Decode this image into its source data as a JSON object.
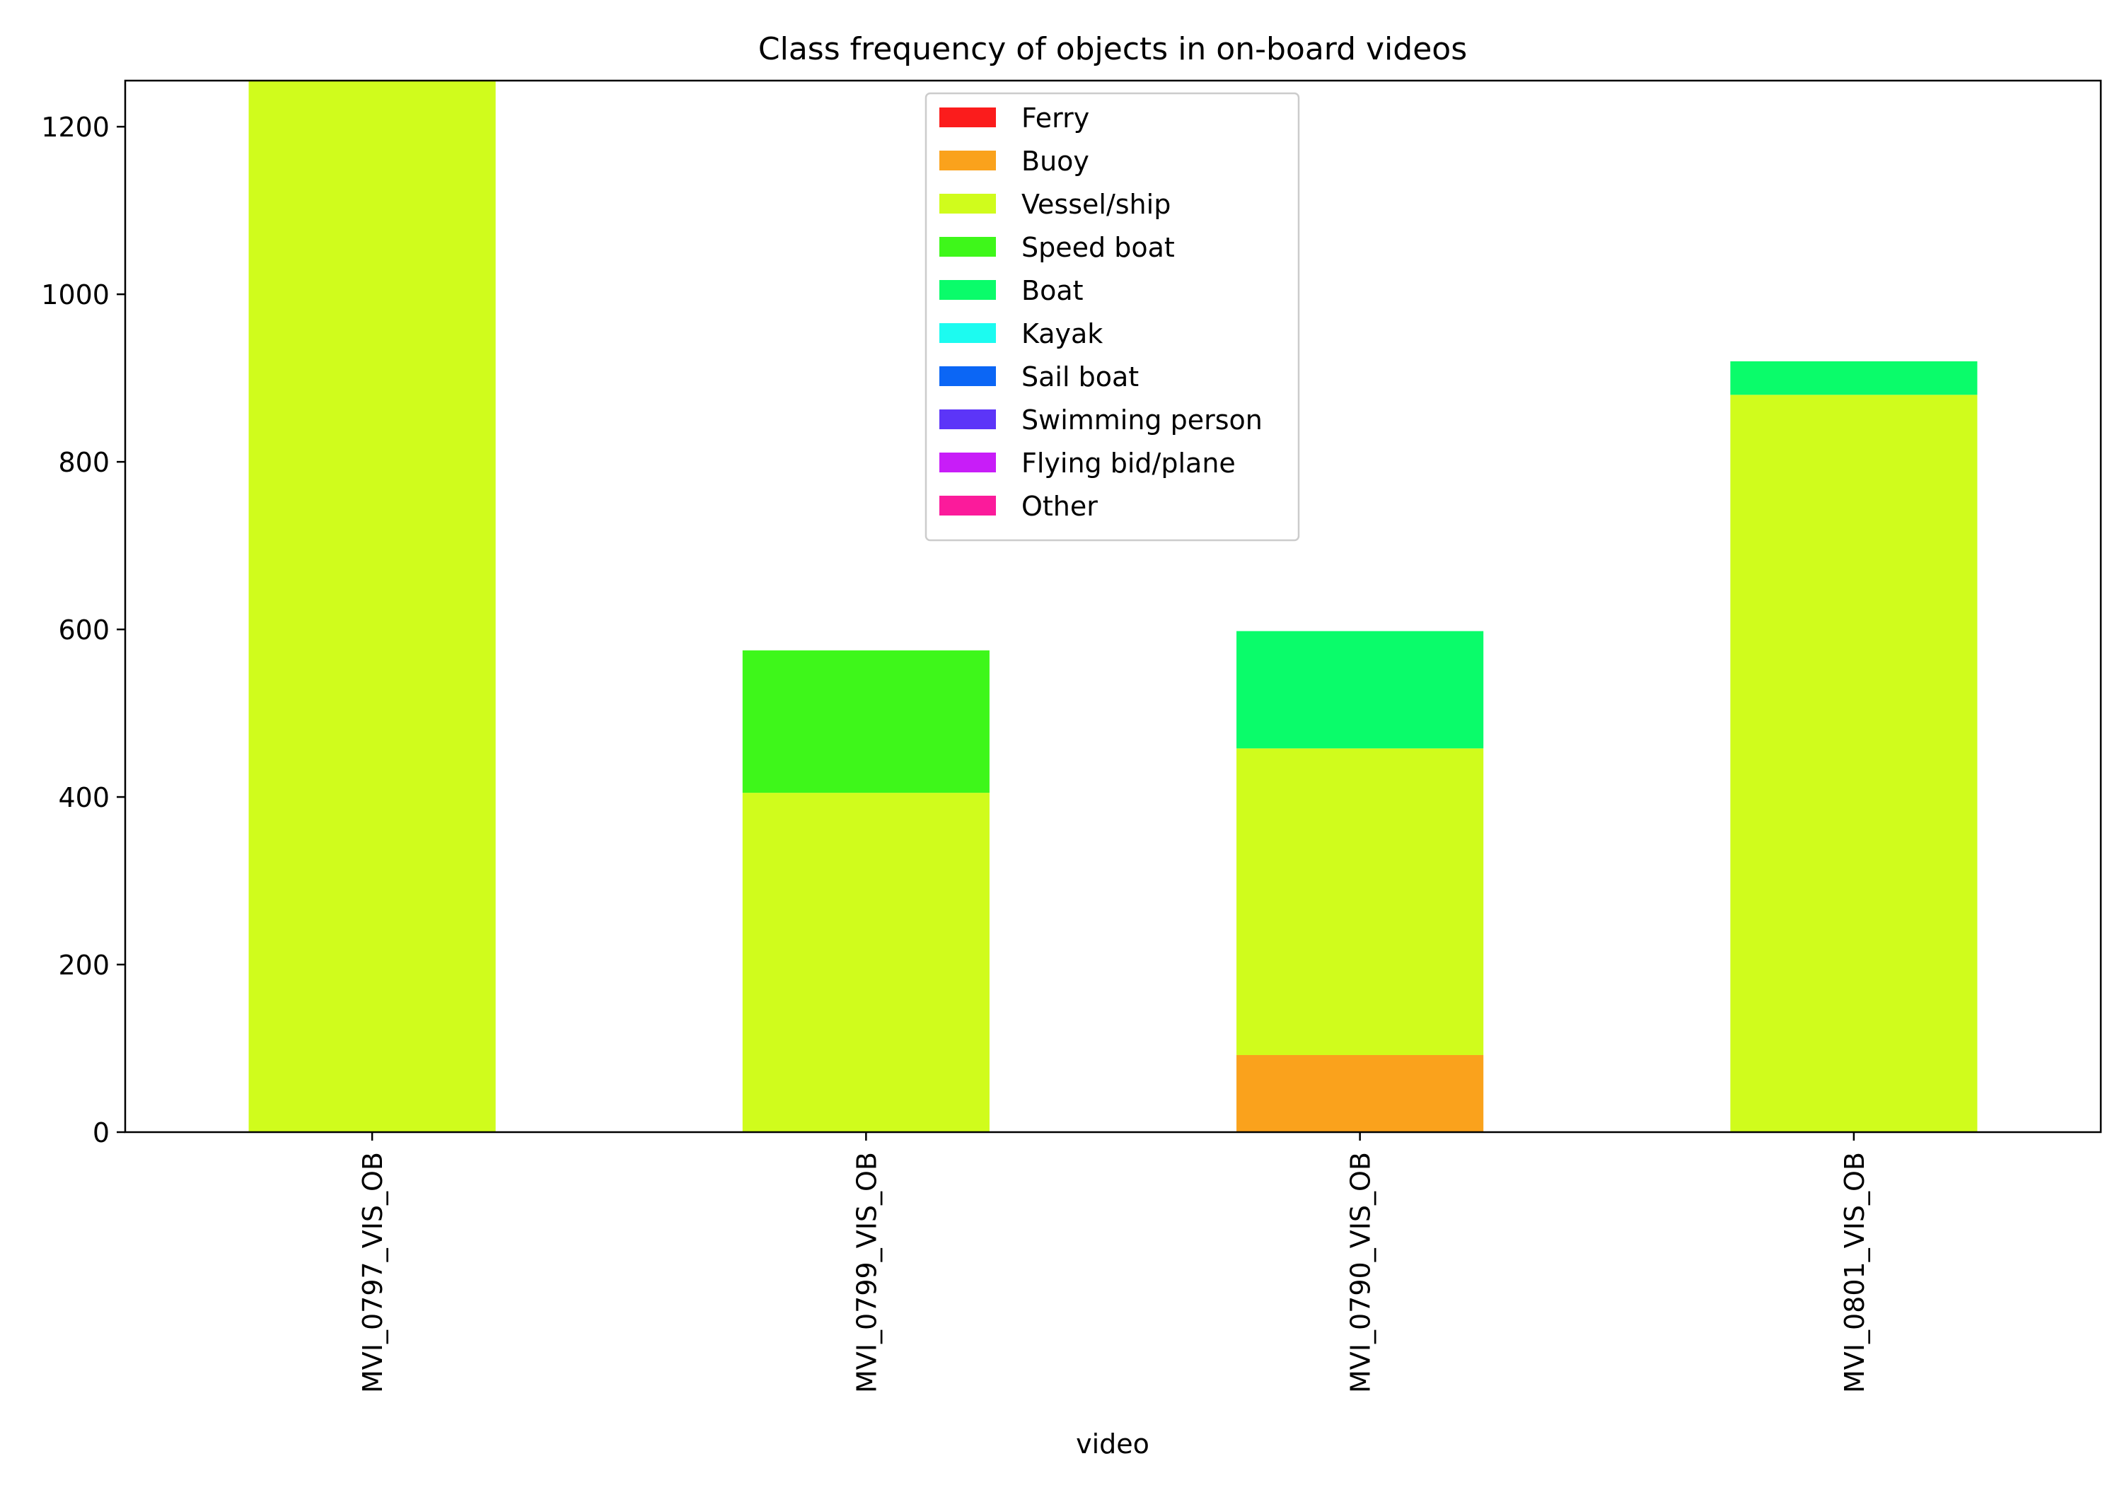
{
  "chart_data": {
    "type": "bar",
    "stacked": true,
    "title": "Class frequency of objects in on-board videos",
    "xlabel": "video",
    "ylabel": "",
    "ylim": [
      0,
      1255
    ],
    "yticks": [
      0,
      200,
      400,
      600,
      800,
      1000,
      1200
    ],
    "grid": false,
    "legend_position": "top-center",
    "categories": [
      "MVI_0797_VIS_OB",
      "MVI_0799_VIS_OB",
      "MVI_0790_VIS_OB",
      "MVI_0801_VIS_OB"
    ],
    "series": [
      {
        "name": "Ferry",
        "color": "#fb1c1c",
        "values": [
          0,
          0,
          0,
          0
        ]
      },
      {
        "name": "Buoy",
        "color": "#faa21c",
        "values": [
          0,
          0,
          92,
          0
        ]
      },
      {
        "name": "Vessel/ship",
        "color": "#d0fc1c",
        "values": [
          1255,
          405,
          366,
          880
        ]
      },
      {
        "name": "Speed boat",
        "color": "#3ef71a",
        "values": [
          0,
          170,
          0,
          0
        ]
      },
      {
        "name": "Boat",
        "color": "#0afc6a",
        "values": [
          0,
          0,
          140,
          40
        ]
      },
      {
        "name": "Kayak",
        "color": "#1cfbf0",
        "values": [
          0,
          0,
          0,
          0
        ]
      },
      {
        "name": "Sail boat",
        "color": "#0b66f5",
        "values": [
          0,
          0,
          0,
          0
        ]
      },
      {
        "name": "Swimming person",
        "color": "#5c35f8",
        "values": [
          0,
          0,
          0,
          0
        ]
      },
      {
        "name": "Flying bid/plane",
        "color": "#c81df8",
        "values": [
          0,
          0,
          0,
          0
        ]
      },
      {
        "name": "Other",
        "color": "#fb1b9b",
        "values": [
          0,
          0,
          0,
          0
        ]
      }
    ]
  }
}
